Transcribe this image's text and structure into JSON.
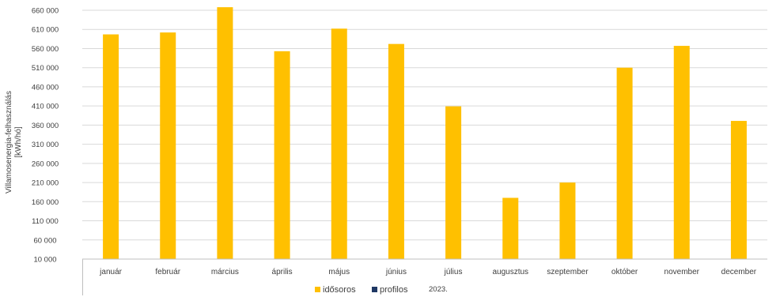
{
  "chart_data": {
    "type": "bar",
    "title": "",
    "xlabel": "",
    "ylabel": [
      "Villamosenergia-felhasználás",
      "[kWh/hó]"
    ],
    "ylim": [
      10000,
      660000
    ],
    "yticks": [
      10000,
      60000,
      110000,
      160000,
      210000,
      260000,
      310000,
      360000,
      410000,
      460000,
      510000,
      560000,
      610000,
      660000
    ],
    "ytick_labels": [
      "10 000",
      "60 000",
      "110 000",
      "160 000",
      "210 000",
      "260 000",
      "310 000",
      "360 000",
      "410 000",
      "460 000",
      "510 000",
      "560 000",
      "610 000",
      "660 000"
    ],
    "categories": [
      "január",
      "február",
      "március",
      "április",
      "május",
      "június",
      "július",
      "augusztus",
      "szeptember",
      "október",
      "november",
      "december"
    ],
    "group_label": "2023.",
    "grid": true,
    "legend_position": "bottom",
    "series": [
      {
        "name": "idősoros",
        "color": "#FFC000",
        "values": [
          597000,
          602000,
          668000,
          553000,
          612000,
          572000,
          409000,
          170000,
          210000,
          510000,
          567000,
          371000
        ]
      },
      {
        "name": "profilos",
        "color": "#1F3864",
        "values": [
          null,
          null,
          null,
          null,
          null,
          null,
          null,
          null,
          null,
          null,
          null,
          null
        ]
      }
    ]
  }
}
